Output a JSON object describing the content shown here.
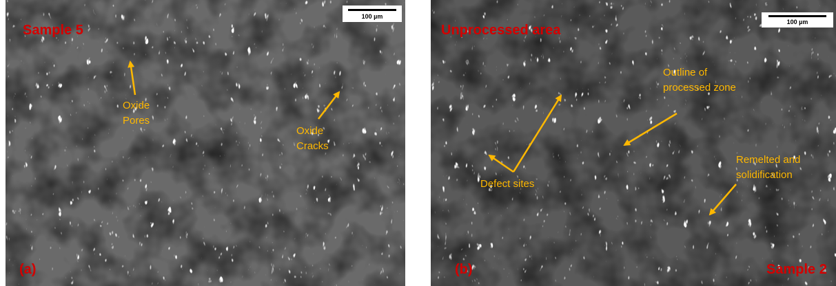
{
  "panels": [
    {
      "label": "(a)",
      "title": "Sample 5",
      "scale_bar": "100 µm",
      "annotations": [
        {
          "lines": [
            "Oxide",
            "Pores"
          ]
        },
        {
          "lines": [
            "Oxide",
            "Cracks"
          ]
        }
      ]
    },
    {
      "label": "(b)",
      "title": "Unprocessed area",
      "sample": "Sample 2",
      "scale_bar": "100 µm",
      "annotations": [
        {
          "lines": [
            "Outline of",
            "processed zone"
          ]
        },
        {
          "lines": [
            "Defect sites"
          ]
        },
        {
          "lines": [
            "Remelted and",
            "solidification"
          ]
        }
      ]
    }
  ]
}
